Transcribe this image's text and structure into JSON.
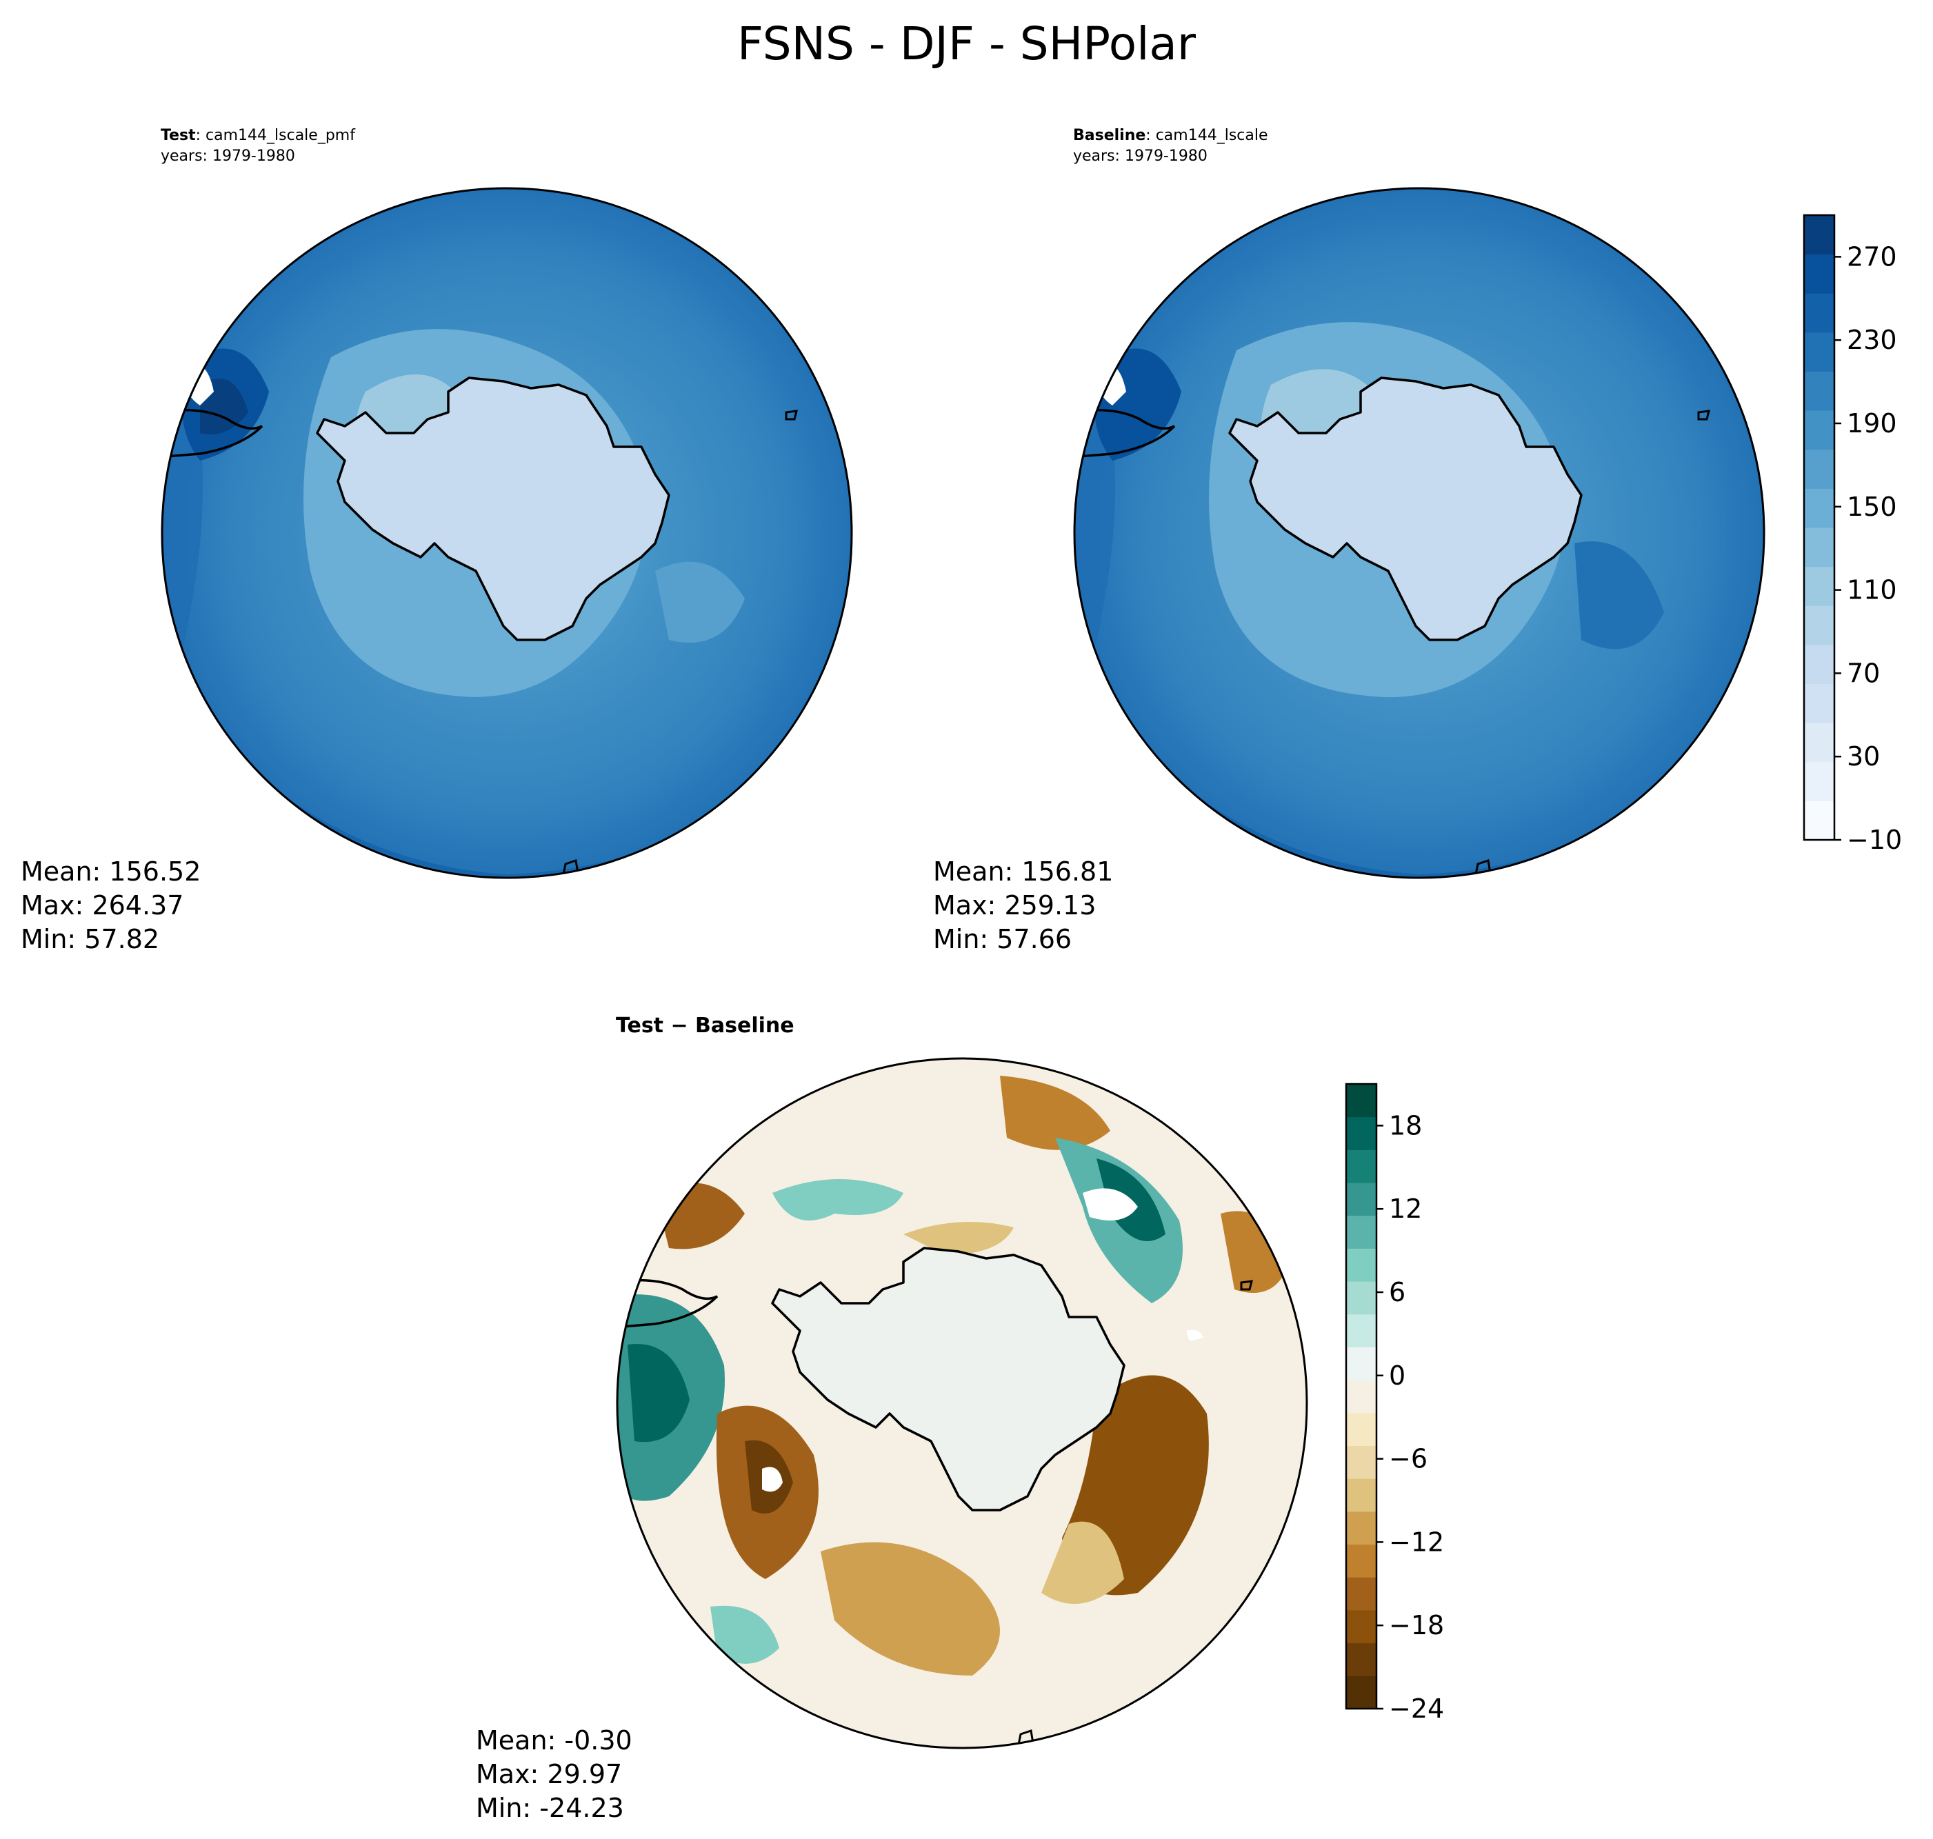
{
  "figure": {
    "title": "FSNS - DJF - SHPolar"
  },
  "panels": [
    {
      "id": "test",
      "title_bold": "Test",
      "title_text": ": cam144_lscale_pmf",
      "years": "years: 1979-1980",
      "stats": {
        "mean": "Mean: 156.52",
        "max": "Max: 264.37",
        "min": "Min: 57.82"
      }
    },
    {
      "id": "baseline",
      "title_bold": "Baseline",
      "title_text": ": cam144_lscale",
      "years": "years: 1979-1980",
      "stats": {
        "mean": "Mean: 156.81",
        "max": "Max: 259.13",
        "min": "Min: 57.66"
      }
    },
    {
      "id": "diff",
      "title": "Test − Baseline",
      "stats": {
        "mean": "Mean: -0.30",
        "max": "Max: 29.97",
        "min": "Min: -24.23"
      }
    }
  ],
  "colorbars": {
    "field": {
      "colormap": "Blues",
      "range": [
        -10,
        290
      ],
      "ticks": [
        "−10",
        "30",
        "70",
        "110",
        "150",
        "190",
        "230",
        "270"
      ],
      "tick_values": [
        -10,
        30,
        70,
        110,
        150,
        190,
        230,
        270
      ],
      "colors": [
        "#f7fbff",
        "#e9f2fb",
        "#deebf7",
        "#cfe1f2",
        "#c6dbef",
        "#b3d3e8",
        "#9ecae1",
        "#84bcdb",
        "#6baed6",
        "#57a0ce",
        "#4292c6",
        "#3282be",
        "#2171b5",
        "#1361a9",
        "#08519c",
        "#083f7f"
      ]
    },
    "diff": {
      "colormap": "BrBG",
      "range": [
        -24,
        21
      ],
      "ticks": [
        "−24",
        "−18",
        "−12",
        "−6",
        "0",
        "6",
        "12",
        "18"
      ],
      "tick_values": [
        -24,
        -18,
        -12,
        -6,
        0,
        6,
        12,
        18
      ],
      "colors": [
        "#543005",
        "#6b3d08",
        "#8c510a",
        "#a1611a",
        "#bf812d",
        "#cfa050",
        "#dfc27d",
        "#ebd7a8",
        "#f6e8c3",
        "#f5f0e3",
        "#ecf5f3",
        "#c7eae5",
        "#a6dbd2",
        "#80cdc1",
        "#5ab4ac",
        "#35978f",
        "#168176",
        "#01665e",
        "#004c3f"
      ]
    }
  }
}
